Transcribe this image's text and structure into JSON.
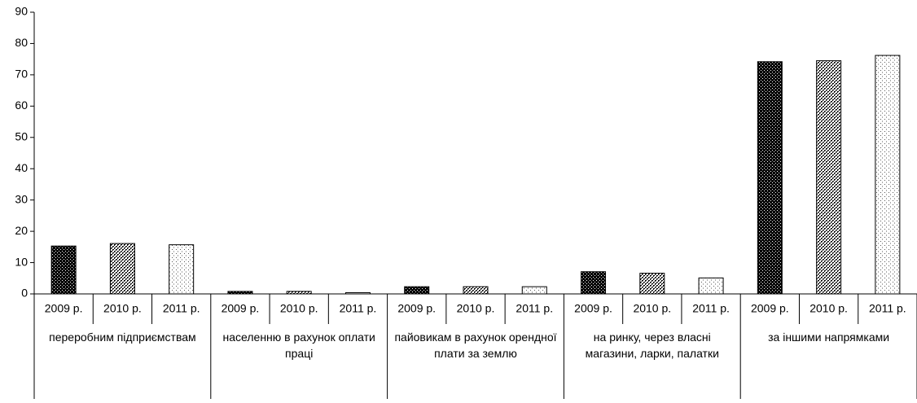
{
  "chart_data": {
    "type": "bar",
    "groups": [
      {
        "label": "переробним підприємствам",
        "categories": [
          "2009 р.",
          "2010 р.",
          "2011 р."
        ],
        "values": [
          15.3,
          16.1,
          15.7
        ]
      },
      {
        "label": "населенню в рахунок оплати праці",
        "categories": [
          "2009 р.",
          "2010 р.",
          "2011 р."
        ],
        "values": [
          0.8,
          0.8,
          0.4
        ]
      },
      {
        "label": "пайовикам в рахунок орендної плати за землю",
        "categories": [
          "2009 р.",
          "2010 р.",
          "2011 р."
        ],
        "values": [
          2.3,
          2.3,
          2.3
        ]
      },
      {
        "label": "на ринку, через власні магазини, ларки, палатки",
        "categories": [
          "2009 р.",
          "2010 р.",
          "2011 р."
        ],
        "values": [
          7.1,
          6.6,
          5.1
        ]
      },
      {
        "label": "за іншими напрямками",
        "categories": [
          "2009 р.",
          "2010 р.",
          "2011 р."
        ],
        "values": [
          74.2,
          74.5,
          76.2
        ]
      }
    ],
    "ylim": [
      0,
      90
    ],
    "yticks": [
      0,
      10,
      20,
      30,
      40,
      50,
      60,
      70,
      80,
      90
    ],
    "grid": false
  }
}
